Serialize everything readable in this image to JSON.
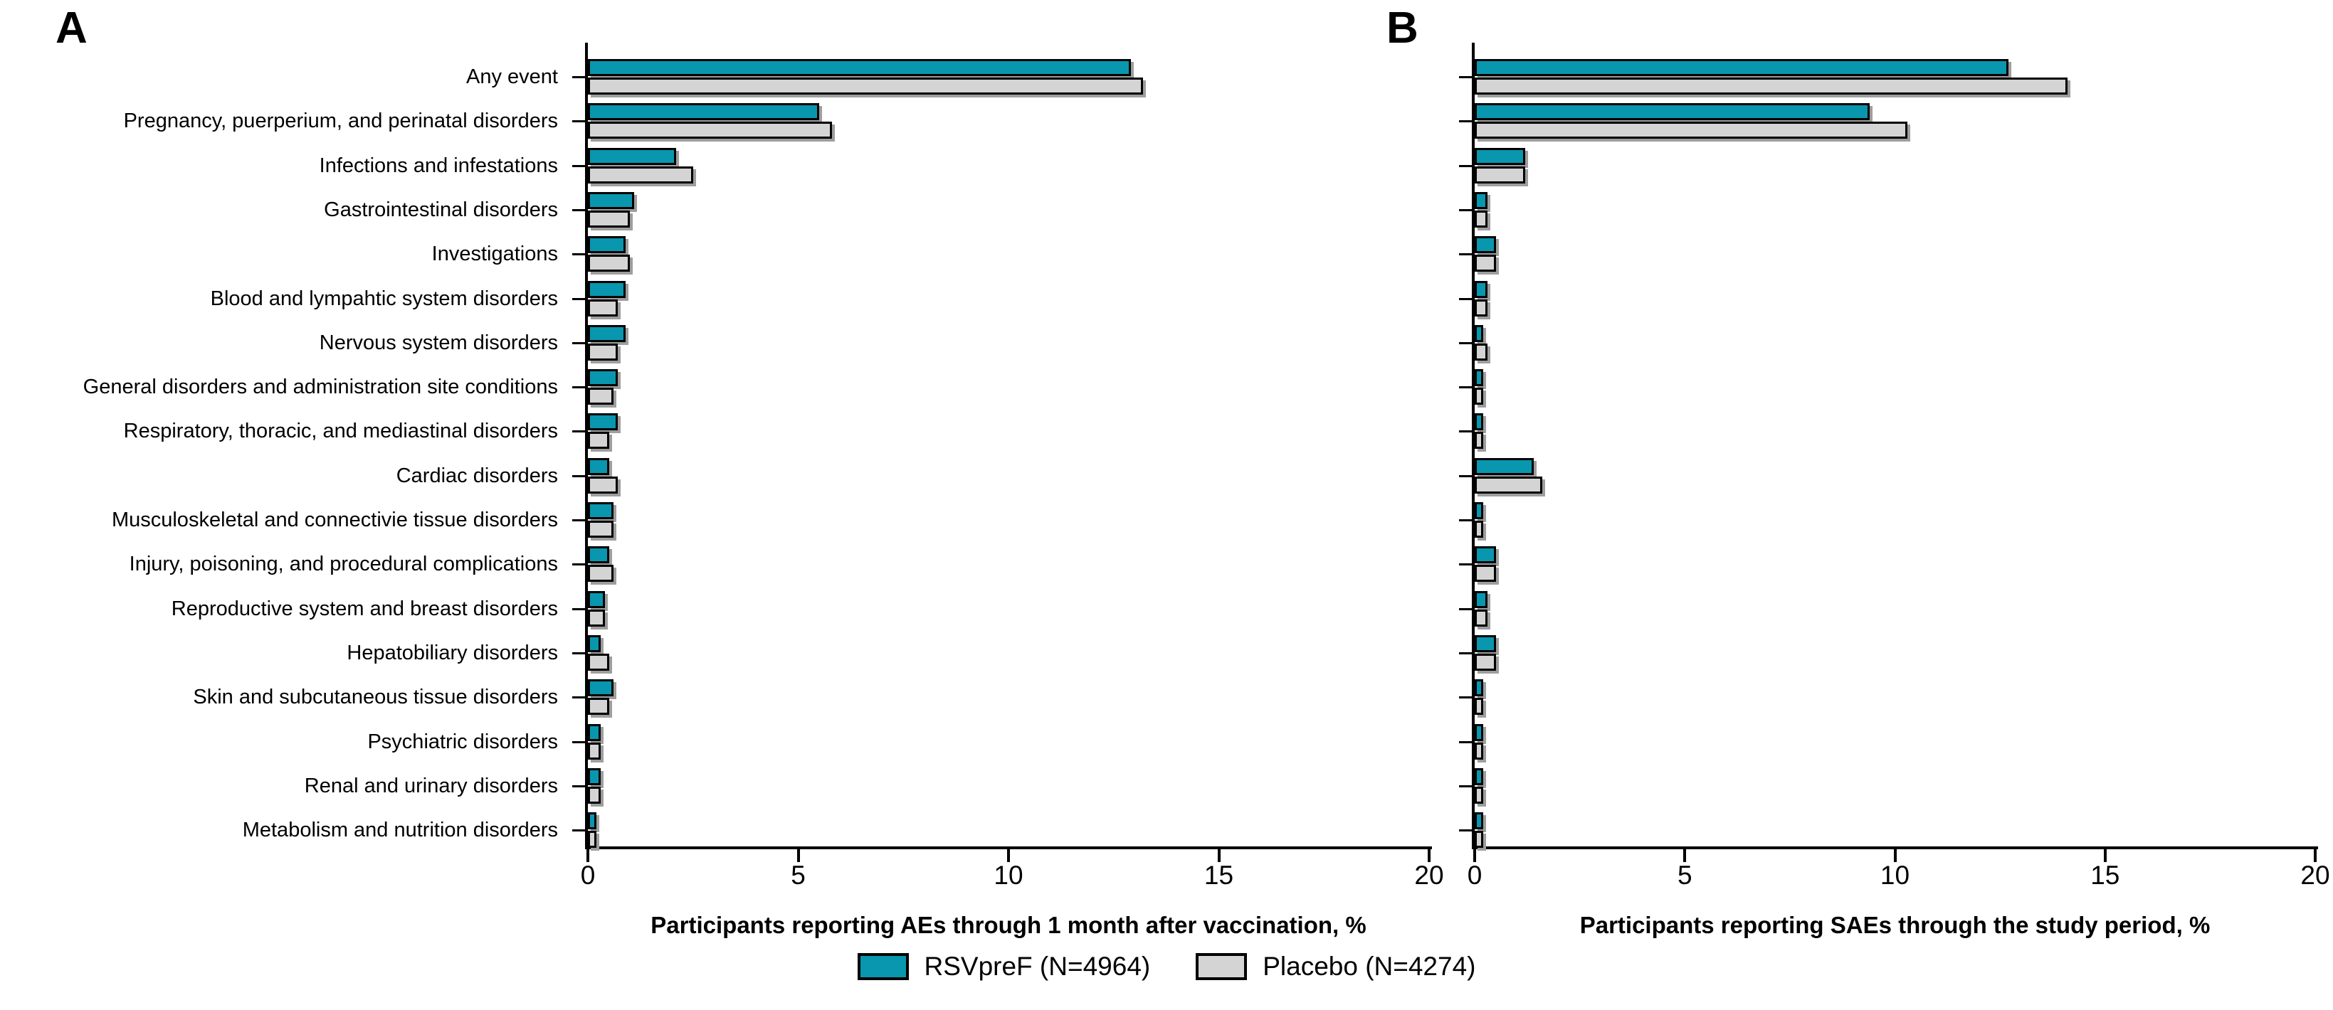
{
  "figure": {
    "panel_a_letter": "A",
    "panel_b_letter": "B"
  },
  "legend": {
    "items": [
      {
        "label": "RSVpreF (N=4964)",
        "color": "#0897AE"
      },
      {
        "label": "Placebo (N=4274)",
        "color": "#D4D4D4"
      }
    ]
  },
  "chart_data": {
    "type": "bar",
    "orientation": "horizontal",
    "grid": false,
    "legend_position": "bottom-center",
    "categories": [
      "Any event",
      "Pregnancy, puerperium, and perinatal disorders",
      "Infections and infestations",
      "Gastrointestinal disorders",
      "Investigations",
      "Blood and lympahtic system disorders",
      "Nervous system disorders",
      "General disorders and administration site conditions",
      "Respiratory, thoracic, and mediastinal disorders",
      "Cardiac disorders",
      "Musculoskeletal and connectivie tissue disorders",
      "Injury, poisoning, and procedural complications",
      "Reproductive system and breast disorders",
      "Hepatobiliary disorders",
      "Skin and subcutaneous tissue disorders",
      "Psychiatric disorders",
      "Renal and urinary disorders",
      "Metabolism and nutrition disorders"
    ],
    "panels": [
      {
        "letter": "A",
        "xlabel": "Participants reporting AEs through 1 month after vaccination, %",
        "xlim": [
          0,
          20
        ],
        "xticks": [
          0,
          5,
          10,
          15,
          20
        ],
        "series": [
          {
            "name": "RSVpreF (N=4964)",
            "color": "#0897AE",
            "values": [
              12.8,
              5.4,
              2.0,
              1.0,
              0.8,
              0.8,
              0.8,
              0.6,
              0.6,
              0.4,
              0.5,
              0.4,
              0.3,
              0.2,
              0.5,
              0.2,
              0.2,
              0.1
            ]
          },
          {
            "name": "Placebo (N=4274)",
            "color": "#D4D4D4",
            "values": [
              13.1,
              5.7,
              2.4,
              0.9,
              0.9,
              0.6,
              0.6,
              0.5,
              0.4,
              0.6,
              0.5,
              0.5,
              0.3,
              0.4,
              0.4,
              0.2,
              0.2,
              0.1
            ]
          }
        ]
      },
      {
        "letter": "B",
        "xlabel": "Participants reporting SAEs through the study period, %",
        "xlim": [
          0,
          20
        ],
        "xticks": [
          0,
          5,
          10,
          15,
          20
        ],
        "series": [
          {
            "name": "RSVpreF (N=4964)",
            "color": "#0897AE",
            "values": [
              12.6,
              9.3,
              1.1,
              0.2,
              0.4,
              0.2,
              0.1,
              0.1,
              0.1,
              1.3,
              0.1,
              0.4,
              0.2,
              0.4,
              0.1,
              0.1,
              0.1,
              0.1
            ]
          },
          {
            "name": "Placebo (N=4274)",
            "color": "#D4D4D4",
            "values": [
              14.0,
              10.2,
              1.1,
              0.2,
              0.4,
              0.2,
              0.2,
              0.1,
              0.1,
              1.5,
              0.1,
              0.4,
              0.2,
              0.4,
              0.1,
              0.1,
              0.1,
              0.1
            ]
          }
        ]
      }
    ]
  }
}
